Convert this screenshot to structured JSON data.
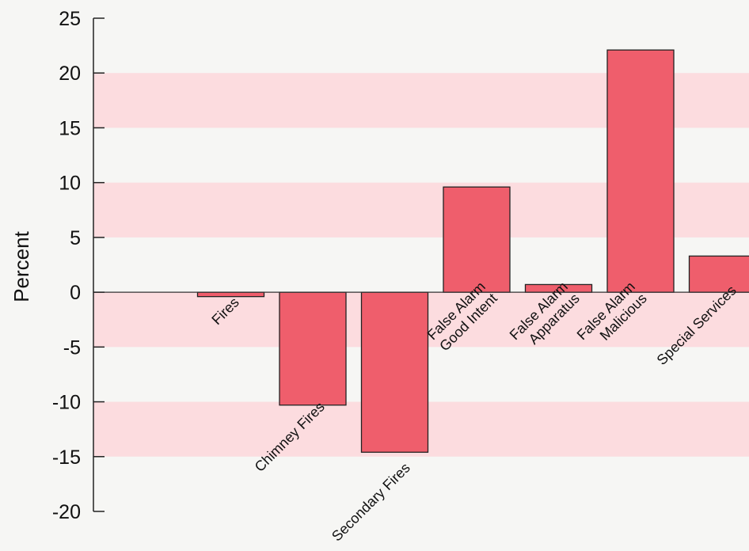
{
  "chart_data": {
    "type": "bar",
    "title": "",
    "xlabel": "",
    "ylabel": "Percent",
    "ylim": [
      -20,
      25
    ],
    "yticks": [
      25,
      20,
      15,
      10,
      5,
      0,
      -5,
      -10,
      -15,
      -20
    ],
    "ytick_labels": [
      "25",
      "20",
      "15",
      "10",
      "5",
      "0",
      "-5",
      "-10",
      "-15",
      "-20"
    ],
    "categories": [
      [
        "Fires"
      ],
      [
        "Chimney Fires"
      ],
      [
        "Secondary Fires"
      ],
      [
        "False Alarm",
        "Good Intent"
      ],
      [
        "False Alarm",
        "Apparatus"
      ],
      [
        "False Alarm",
        "Malicious"
      ],
      [
        "Special Services"
      ]
    ],
    "values": [
      -0.4,
      -10.3,
      -14.6,
      9.6,
      0.7,
      22.1,
      3.3
    ],
    "bar_color": "#ef5e6c",
    "band_color": "#fcdcdf",
    "background_color": "#f6f6f4",
    "grid": false,
    "legend": "none"
  }
}
